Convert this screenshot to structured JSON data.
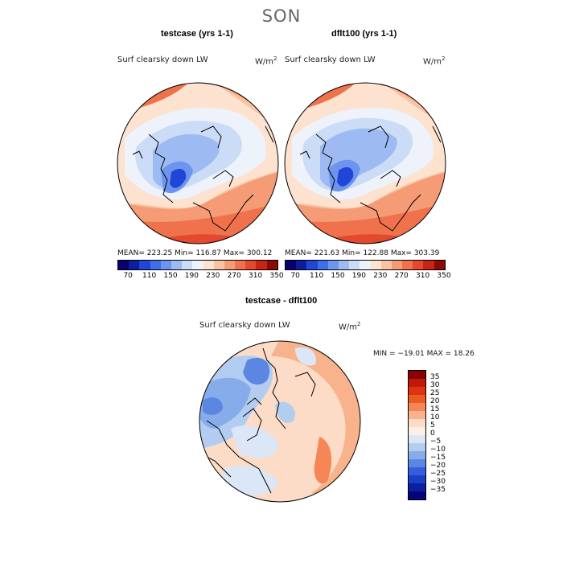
{
  "season": "SON",
  "top_left": {
    "title": "testcase (yrs 1-1)",
    "variable": "Surf clearsky down LW",
    "units_base": "W/m",
    "units_exp": "2",
    "stats": "MEAN= 223.25    Min= 116.87    Max= 300.12"
  },
  "top_right": {
    "title": "dflt100 (yrs 1-1)",
    "variable": "Surf clearsky down LW",
    "units_base": "W/m",
    "units_exp": "2",
    "stats": "MEAN= 221.63    Min= 122.88    Max= 303.39"
  },
  "bottom": {
    "title": "testcase - dflt100",
    "variable": "Surf clearsky down LW",
    "units_base": "W/m",
    "units_exp": "2",
    "stats": "MIN = −19.01  MAX =  18.26"
  },
  "colorbar_top": {
    "colors": [
      "#08006e",
      "#0d1e9c",
      "#2145d6",
      "#3f6fe8",
      "#6d95ee",
      "#9dbbf2",
      "#cbdcf7",
      "#eef2fb",
      "#fde3cf",
      "#f9c2a2",
      "#f59c76",
      "#f0724d",
      "#e4482e",
      "#c82614",
      "#8b0a06"
    ],
    "labels": [
      "70",
      "110",
      "150",
      "190",
      "230",
      "270",
      "310",
      "350"
    ]
  },
  "colorbar_diff": {
    "colors": [
      "#8b0000",
      "#c0180b",
      "#de3210",
      "#ee5a26",
      "#f68656",
      "#f8b38c",
      "#fcdcc6",
      "#fdf0e3",
      "#dbe7f6",
      "#b3cdf1",
      "#86acea",
      "#5b87e3",
      "#3360da",
      "#1a3ec4",
      "#0b20a0",
      "#05057a"
    ],
    "labels": [
      "35",
      "30",
      "25",
      "20",
      "15",
      "10",
      "5",
      "0",
      "−5",
      "−10",
      "−15",
      "−20",
      "−25",
      "−30",
      "−35"
    ]
  },
  "colors": {
    "map_blue_dark": "#2e5bd9",
    "map_blue": "#7da5ec",
    "map_blue_light": "#c7dbf6",
    "map_pale": "#eaf1fb",
    "map_peach": "#fbdac4",
    "map_orange": "#f4a27c",
    "map_red": "#e7593a"
  }
}
